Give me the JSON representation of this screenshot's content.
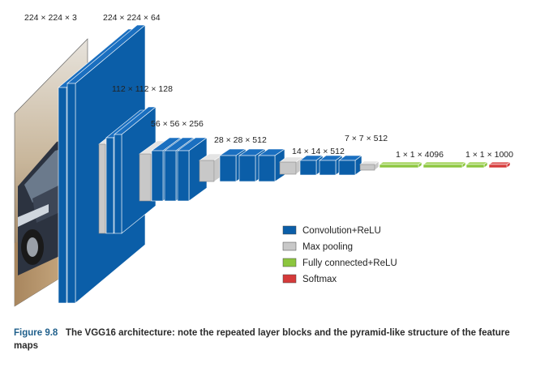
{
  "dims": {
    "input": "224 × 224 × 3",
    "conv1": "224 × 224 × 64",
    "conv2": "112 × 112 × 128",
    "conv3": "56 × 56 × 256",
    "conv4": "28 × 28 × 512",
    "conv5": "14 × 14 × 512",
    "pool5": "7 × 7 × 512",
    "fc": "1 × 1 × 4096",
    "softmax": "1 × 1 × 1000"
  },
  "legend": [
    {
      "label": "Convolution+ReLU",
      "color": "#0b5ea8"
    },
    {
      "label": "Max pooling",
      "color": "#c8c8c8"
    },
    {
      "label": "Fully connected+ReLU",
      "color": "#8cc63e"
    },
    {
      "label": "Softmax",
      "color": "#d53a3a"
    }
  ],
  "colors": {
    "conv_front": "#0b5ea8",
    "conv_side": "#1a6fc0",
    "pool_front": "#c8c8c8",
    "pool_side": "#e4e4e4",
    "fc": "#8cc63e",
    "softmax": "#d53a3a"
  },
  "input_image": "car-photo",
  "caption": {
    "figure": "Figure 9.8",
    "text": "The VGG16 architecture: note the repeated layer blocks and the pyramid-like structure of the feature maps"
  }
}
